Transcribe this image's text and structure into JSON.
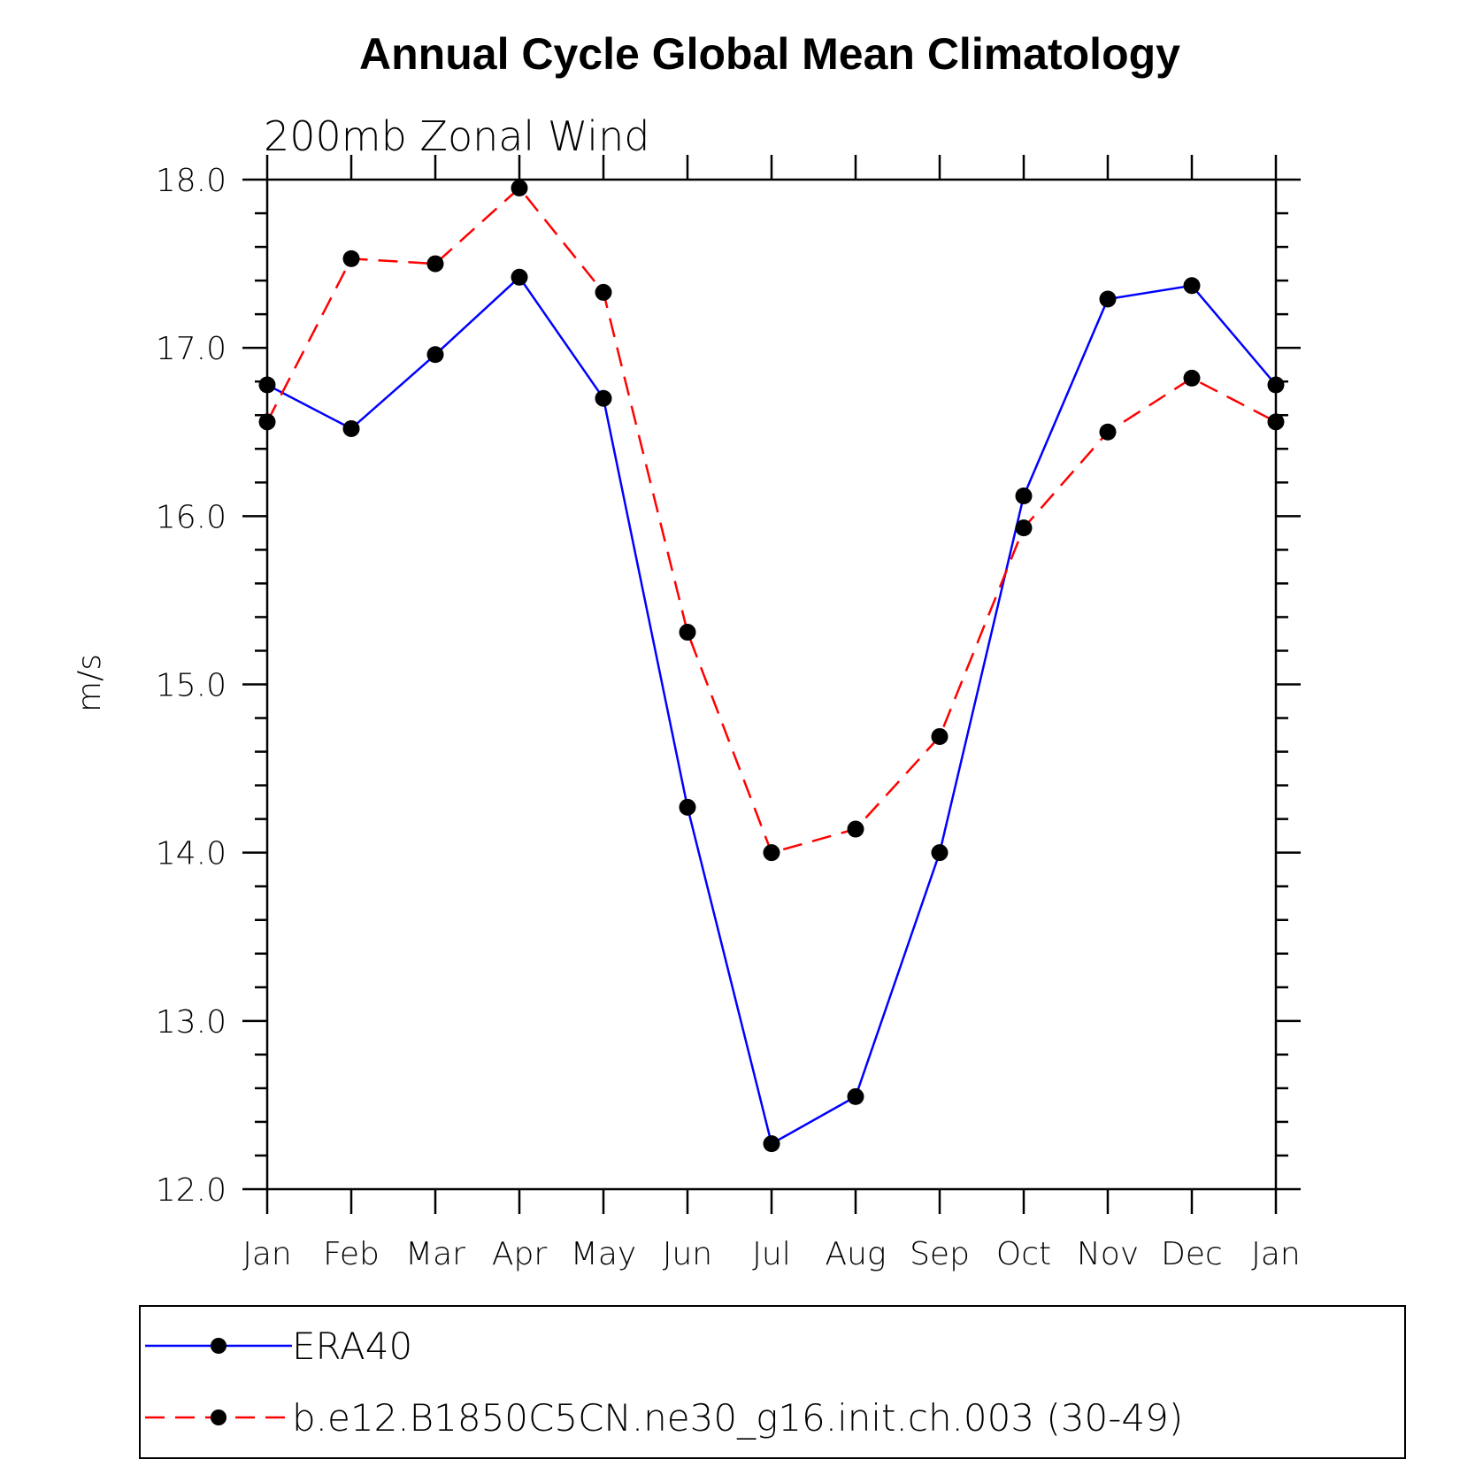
{
  "chart_data": {
    "type": "line",
    "title": "Annual Cycle Global Mean Climatology",
    "subtitle": "200mb Zonal Wind",
    "ylabel": "m/s",
    "ylim": [
      12.0,
      18.0
    ],
    "yticks": [
      "12.0",
      "13.0",
      "14.0",
      "15.0",
      "16.0",
      "17.0",
      "18.0"
    ],
    "categories": [
      "Jan",
      "Feb",
      "Mar",
      "Apr",
      "May",
      "Jun",
      "Jul",
      "Aug",
      "Sep",
      "Oct",
      "Nov",
      "Dec",
      "Jan"
    ],
    "grid": false,
    "legend_position": "bottom",
    "series": [
      {
        "name": "ERA40",
        "color": "#0000ff",
        "dash": "solid",
        "values": [
          16.78,
          16.52,
          16.96,
          17.42,
          16.7,
          14.27,
          12.27,
          12.55,
          14.0,
          16.12,
          17.29,
          17.37,
          16.78
        ]
      },
      {
        "name": "b.e12.B1850C5CN.ne30_g16.init.ch.003 (30-49)",
        "color": "#ff0000",
        "dash": "dashed",
        "values": [
          16.56,
          17.53,
          17.5,
          17.95,
          17.33,
          15.31,
          14.0,
          14.14,
          14.69,
          15.93,
          16.5,
          16.82,
          16.56
        ]
      }
    ]
  }
}
